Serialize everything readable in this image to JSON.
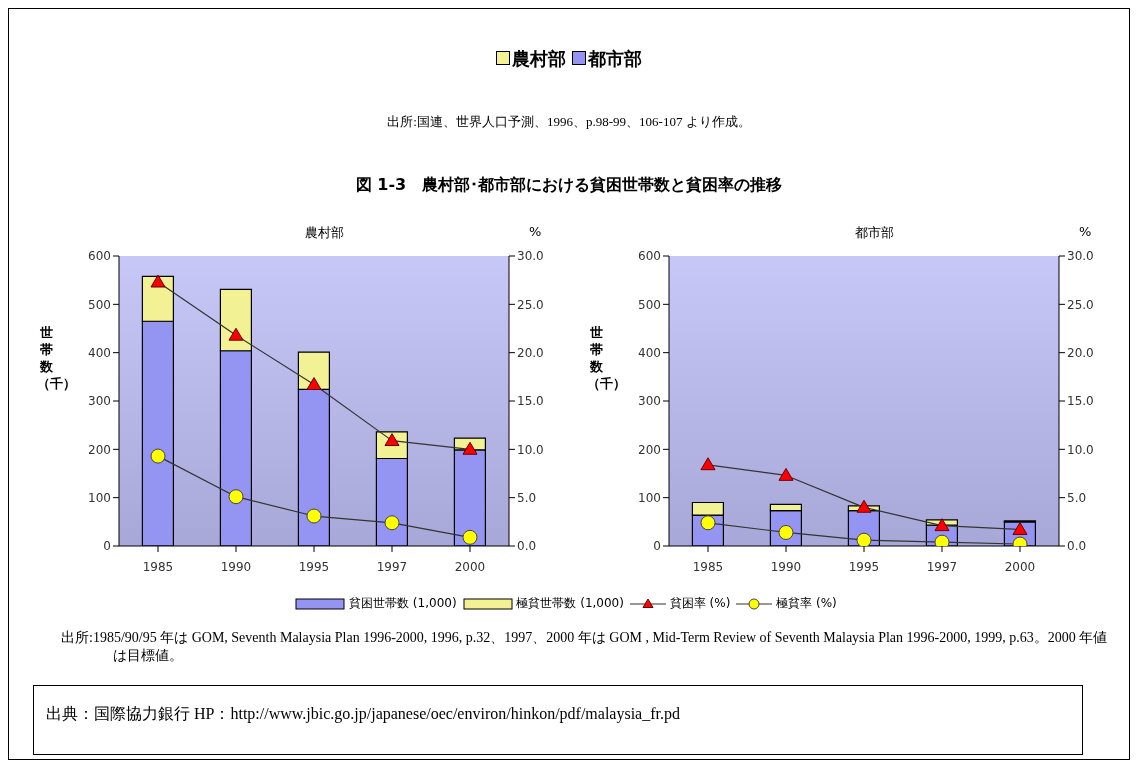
{
  "chart_data": [
    {
      "type": "bar",
      "title": "農村部",
      "ylabel": "世帯数（千）",
      "y2label": "%",
      "categories": [
        "1985",
        "1990",
        "1995",
        "1997",
        "2000"
      ],
      "stacked": true,
      "legend": "bottom",
      "ylim": [
        0,
        600
      ],
      "yticks": [
        0,
        100,
        200,
        300,
        400,
        500,
        600
      ],
      "y2lim": [
        0,
        30
      ],
      "y2ticks": [
        {
          "value": 0,
          "label": "0.0"
        },
        {
          "value": 5,
          "label": "5.0"
        },
        {
          "value": 10,
          "label": "10.0"
        },
        {
          "value": 15,
          "label": "15.0"
        },
        {
          "value": 20,
          "label": "20.0"
        },
        {
          "value": 25,
          "label": "25.0"
        },
        {
          "value": 30,
          "label": "30.0"
        }
      ],
      "series": [
        {
          "name": "貧困世帯数 (1,000)",
          "color": "#9494f2",
          "values": [
            465,
            404,
            324,
            181,
            199
          ]
        },
        {
          "name": "極貧世帯数 (1,000)",
          "color": "#f2f294",
          "values": [
            93,
            127,
            77,
            55,
            24
          ]
        },
        {
          "name": "貧困率 (%)",
          "type": "line",
          "axis": "y2",
          "marker": "triangle",
          "color": "#ff0000",
          "values": [
            27.3,
            21.8,
            16.7,
            10.9,
            10.0
          ]
        },
        {
          "name": "極貧率 (%)",
          "type": "line",
          "axis": "y2",
          "marker": "circle",
          "color": "#ffff00",
          "values": [
            9.3,
            5.1,
            3.1,
            2.4,
            0.9
          ]
        }
      ],
      "annotations": [
        "農村部",
        "都市部",
        "出所:国連、世界人口予測、1996、p.98-99、106-107 より作成。",
        "図 1-3　農村部･都市部における貧困世帯数と貧困率の推移",
        "出所:1985/90/95 年は GOM, Seventh Malaysia Plan 1996-2000, 1996, p.32、1997、2000 年は GOM , Mid-Term Review of Seventh Malaysia Plan 1996-2000, 1999, p.63。2000 年値は目標値。",
        "出典：国際協力銀行 HP：http://www.jbic.go.jp/japanese/oec/environ/hinkon/pdf/malaysia_fr.pd"
      ]
    },
    {
      "type": "bar",
      "title": "都市部",
      "ylabel": "世帯数（千）",
      "y2label": "%",
      "categories": [
        "1985",
        "1990",
        "1995",
        "1997",
        "2000"
      ],
      "stacked": true,
      "ylim": [
        0,
        600
      ],
      "yticks": [
        0,
        100,
        200,
        300,
        400,
        500,
        600
      ],
      "y2lim": [
        0,
        30
      ],
      "y2ticks": [
        {
          "value": 0,
          "label": "0.0"
        },
        {
          "value": 5,
          "label": "5.0"
        },
        {
          "value": 10,
          "label": "10.0"
        },
        {
          "value": 15,
          "label": "15.0"
        },
        {
          "value": 20,
          "label": "20.0"
        },
        {
          "value": 25,
          "label": "25.0"
        },
        {
          "value": 30,
          "label": "30.0"
        }
      ],
      "series": [
        {
          "color": "#9494f2",
          "values": [
            64,
            73,
            73,
            43,
            50
          ]
        },
        {
          "color": "#f2f294",
          "values": [
            26,
            13,
            10,
            11,
            2
          ]
        },
        {
          "type": "line",
          "axis": "y2",
          "marker": "triangle",
          "color": "#ff0000",
          "values": [
            8.4,
            7.3,
            4.0,
            2.1,
            1.7
          ]
        },
        {
          "type": "line",
          "axis": "y2",
          "marker": "circle",
          "color": "#ffff00",
          "values": [
            2.4,
            1.4,
            0.6,
            0.4,
            0.2
          ]
        }
      ]
    }
  ]
}
